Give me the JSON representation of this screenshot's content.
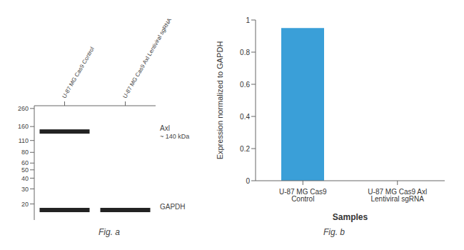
{
  "chart_data": [
    {
      "type": "blot",
      "categories": [
        "U-87 MG Cas9 Control",
        "U-87 MG Cas9 Axl Lentiviral sgRNA"
      ],
      "series": [
        {
          "name": "Axl",
          "color": "#222222",
          "values": [
            140,
            null
          ]
        },
        {
          "name": "GAPDH",
          "color": "#222222",
          "values": [
            17,
            17
          ]
        }
      ],
      "ylim": [
        13,
        280
      ],
      "yticks": [
        260,
        160,
        110,
        80,
        60,
        50,
        40,
        30,
        20
      ],
      "log": "y",
      "grid": false,
      "annotations": [
        {
          "text": "~ 140 kDa",
          "y": 140
        },
        {
          "text": "Fig. a"
        }
      ]
    },
    {
      "type": "bar",
      "categories": [
        "U-87 MG Cas9 Control",
        "U-87 MG Cas9 Axl Lentiviral sgRNA"
      ],
      "values": [
        0.95,
        0.0
      ],
      "color": "#3a9fd8",
      "xlabel": "Samples",
      "ylabel": "Expression normalized to GAPDH",
      "ylim": [
        0,
        1.0
      ],
      "yticks": [
        0,
        0.2,
        0.4,
        0.6,
        0.8,
        1
      ],
      "grid": false,
      "annotations": [
        {
          "text": "Fig. b"
        }
      ]
    }
  ]
}
